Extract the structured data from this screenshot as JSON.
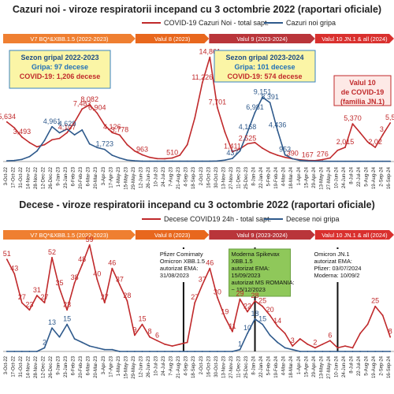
{
  "chart_data": [
    {
      "type": "line",
      "title": "Cazuri noi - viroze respiratorii incepand cu 3 octombrie 2022  (raportari oficiale)",
      "ylim": [
        0,
        16500
      ],
      "grid": false,
      "legend": "top-center",
      "x_ticks": [
        "3-Oct-22",
        "17-Oct-22",
        "31-Oct-22",
        "14-Nov-22",
        "28-Nov-22",
        "12-Dec-22",
        "26-Dec-22",
        "9-Jan-23",
        "23-Jan-23",
        "6-Feb-23",
        "20-Feb-23",
        "6-Mar-23",
        "20-Mar-23",
        "3-Apr-23",
        "17-Apr-23",
        "1-May-23",
        "15-May-23",
        "29-May-23",
        "12-Jun-23",
        "26-Jun-23",
        "10-Jul-23",
        "24-Jul-23",
        "7-Aug-23",
        "21-Aug-23",
        "4-Sep-23",
        "18-Sep-23",
        "2-Oct-23",
        "16-Oct-23",
        "30-Oct-23",
        "13-Nov-23",
        "27-Nov-23",
        "11-Dec-23",
        "25-Dec-23",
        "8-Jan-24",
        "22-Jan-24",
        "5-Feb-24",
        "19-Feb-24",
        "4-Mar-24",
        "18-Mar-24",
        "1-Apr-24",
        "15-Apr-24",
        "29-Apr-24",
        "13-May-24",
        "27-May-24",
        "10-Jun-24",
        "24-Jun-24",
        "8-Jul-24",
        "22-Jul-24",
        "5-Aug-24",
        "19-Aug-24",
        "2-Sep-24",
        "16-Sep-24"
      ],
      "periods": [
        {
          "label": "V7 BQ*&XBB.1.5 (2022-2023)",
          "from": 0,
          "to": 17.6,
          "color": "#ef7f31"
        },
        {
          "label": "Valul 8 (2023)",
          "from": 17.6,
          "to": 27.4,
          "color": "#e8671d"
        },
        {
          "label": "Valul 9 (2023-2024)",
          "from": 27.4,
          "to": 41.5,
          "color": "#b9353a"
        },
        {
          "label": "Valul 10 JN.1 & all (2024)",
          "from": 41.5,
          "to": 52,
          "color": "#d9302e"
        }
      ],
      "series": [
        {
          "name": "COVID-19 Cazuri Noi - total sapt.",
          "color": "#c0292b",
          "x": [
            0,
            1,
            2,
            3,
            4,
            5,
            6,
            7,
            8,
            9,
            10,
            11,
            12,
            13,
            14,
            15,
            16,
            17,
            18,
            19,
            20,
            21,
            22,
            23,
            24,
            25,
            26,
            27,
            28,
            29,
            30,
            31,
            32,
            33,
            34,
            35,
            36,
            37,
            38,
            39,
            40,
            41,
            42,
            43,
            44,
            45,
            46,
            47,
            48,
            49,
            50,
            51
          ],
          "values": [
            5634,
            4800,
            3493,
            2700,
            2100,
            2400,
            3100,
            3300,
            4107,
            5600,
            7483,
            8082,
            6904,
            5200,
            4126,
            3778,
            2400,
            1500,
            963,
            600,
            420,
            400,
            510,
            900,
            2400,
            6200,
            11226,
            14861,
            7701,
            4200,
            1411,
            1800,
            2525,
            2700,
            1900,
            1300,
            900,
            600,
            390,
            250,
            167,
            130,
            276,
            500,
            1600,
            2015,
            5370,
            4100,
            2800,
            2020,
            3800,
            5500
          ]
        },
        {
          "name": "Cazuri noi gripa",
          "color": "#2f5a8c",
          "x": [
            0,
            1,
            2,
            3,
            4,
            5,
            6,
            7,
            8,
            9,
            10,
            11,
            12,
            13,
            14,
            15,
            16,
            17,
            18,
            19,
            20,
            21,
            22,
            23,
            24,
            25,
            26,
            27,
            28,
            29,
            30,
            31,
            32,
            33,
            34,
            35,
            36,
            37,
            38,
            39,
            40,
            41,
            42,
            43,
            44,
            45,
            46,
            47,
            48,
            49,
            50,
            51
          ],
          "values": [
            100,
            150,
            300,
            700,
            1500,
            3000,
            4961,
            4100,
            4629,
            3800,
            4500,
            2500,
            2000,
            1723,
            900,
            500,
            200,
            100,
            50,
            40,
            40,
            40,
            40,
            40,
            40,
            40,
            40,
            50,
            80,
            200,
            437,
            1500,
            4168,
            6981,
            9151,
            8391,
            4436,
            953,
            400,
            150,
            80,
            60,
            40,
            30,
            30,
            30,
            30,
            30,
            30,
            30,
            30,
            30
          ]
        }
      ],
      "point_labels": [
        {
          "series": 0,
          "i": 0,
          "text": "5,634"
        },
        {
          "series": 0,
          "i": 2,
          "text": "3,493"
        },
        {
          "series": 0,
          "i": 8,
          "text": "4,107"
        },
        {
          "series": 0,
          "i": 10,
          "text": "7,483"
        },
        {
          "series": 0,
          "i": 11,
          "text": "8,082"
        },
        {
          "series": 0,
          "i": 12,
          "text": "6,904"
        },
        {
          "series": 0,
          "i": 14,
          "text": "4,126"
        },
        {
          "series": 0,
          "i": 15,
          "text": "3,778"
        },
        {
          "series": 0,
          "i": 18,
          "text": "963"
        },
        {
          "series": 0,
          "i": 22,
          "text": "510"
        },
        {
          "series": 0,
          "i": 26,
          "text": "11,226"
        },
        {
          "series": 0,
          "i": 27,
          "text": "14,861"
        },
        {
          "series": 0,
          "i": 28,
          "text": "7,701"
        },
        {
          "series": 0,
          "i": 30,
          "text": "1,411"
        },
        {
          "series": 0,
          "i": 32,
          "text": "2,525"
        },
        {
          "series": 0,
          "i": 38,
          "text": "390"
        },
        {
          "series": 0,
          "i": 40,
          "text": "167"
        },
        {
          "series": 0,
          "i": 42,
          "text": "276"
        },
        {
          "series": 0,
          "i": 45,
          "text": "2,015"
        },
        {
          "series": 0,
          "i": 46,
          "text": "5,370"
        },
        {
          "series": 0,
          "i": 49,
          "text": "2,02"
        },
        {
          "series": 0,
          "i": 50,
          "text": "3,"
        },
        {
          "series": 0,
          "i": 51,
          "text": "5,5"
        },
        {
          "series": 1,
          "i": 6,
          "text": "4,961"
        },
        {
          "series": 1,
          "i": 8,
          "text": "4,629"
        },
        {
          "series": 1,
          "i": 13,
          "text": "1,723"
        },
        {
          "series": 1,
          "i": 30,
          "text": "437"
        },
        {
          "series": 1,
          "i": 32,
          "text": "4,168"
        },
        {
          "series": 1,
          "i": 33,
          "text": "6,981"
        },
        {
          "series": 1,
          "i": 34,
          "text": "9,151"
        },
        {
          "series": 1,
          "i": 35,
          "text": "8,391"
        },
        {
          "series": 1,
          "i": 36,
          "text": "4,436"
        },
        {
          "series": 1,
          "i": 37,
          "text": "953"
        }
      ],
      "callouts": [
        {
          "lines": [
            "Sezon gripal 2022-2023",
            "Gripa: 97 decese",
            "COVID-19: 1,206 decese"
          ]
        },
        {
          "lines": [
            "Sezon gripal 2023-2024",
            "Gripa: 101 decese",
            "COVID-19: 574 decese"
          ]
        },
        {
          "lines": [
            "Valul 10",
            "de COVID-19",
            "(familia JN.1)"
          ]
        }
      ]
    },
    {
      "type": "line",
      "title": "Decese - viroze respiratorii incepand cu 3 octombrie 2022  (raportari oficiale)",
      "ylim": [
        0,
        62
      ],
      "grid": false,
      "legend": "top-center",
      "x_ticks": [
        "3-Oct-22",
        "17-Oct-22",
        "31-Oct-22",
        "14-Nov-22",
        "28-Nov-22",
        "12-Dec-22",
        "26-Dec-22",
        "9-Jan-23",
        "23-Jan-23",
        "6-Feb-23",
        "20-Feb-23",
        "6-Mar-23",
        "20-Mar-23",
        "3-Apr-23",
        "17-Apr-23",
        "1-May-23",
        "15-May-23",
        "29-May-23",
        "12-Jun-23",
        "26-Jun-23",
        "10-Jul-23",
        "24-Jul-23",
        "7-Aug-23",
        "21-Aug-23",
        "4-Sep-23",
        "18-Sep-23",
        "2-Oct-23",
        "16-Oct-23",
        "30-Oct-23",
        "13-Nov-23",
        "27-Nov-23",
        "11-Dec-23",
        "25-Dec-23",
        "8-Jan-24",
        "22-Jan-24",
        "5-Feb-24",
        "19-Feb-24",
        "4-Mar-24",
        "18-Mar-24",
        "1-Apr-24",
        "15-Apr-24",
        "29-Apr-24",
        "13-May-24",
        "27-May-24",
        "10-Jun-24",
        "24-Jun-24",
        "8-Jul-24",
        "22-Jul-24",
        "5-Aug-24",
        "19-Aug-24",
        "2-Sep-24",
        "16-Sep-24"
      ],
      "periods": [
        {
          "label": "V7 BQ*&XBB.1.5 (2022-2023)",
          "from": 0,
          "to": 17.6,
          "color": "#ef7f31"
        },
        {
          "label": "Valul 8 (2023)",
          "from": 17.6,
          "to": 27.4,
          "color": "#e8671d"
        },
        {
          "label": "Valul 9 (2023-2024)",
          "from": 27.4,
          "to": 41.5,
          "color": "#b9353a"
        },
        {
          "label": "Valul 10 JN.1 & all (2024)",
          "from": 41.5,
          "to": 52,
          "color": "#d9302e"
        }
      ],
      "series": [
        {
          "name": "Decese COVID19 24h - total sapt.",
          "color": "#c0292b",
          "x": [
            0,
            1,
            2,
            3,
            4,
            5,
            6,
            7,
            8,
            9,
            10,
            11,
            12,
            13,
            14,
            15,
            16,
            17,
            18,
            19,
            20,
            21,
            22,
            23,
            24,
            25,
            26,
            27,
            28,
            29,
            30,
            31,
            32,
            33,
            34,
            35,
            36,
            37,
            38,
            39,
            40,
            41,
            42,
            43,
            44,
            45,
            46,
            47,
            48,
            49,
            50,
            51
          ],
          "values": [
            51,
            43,
            27,
            23,
            31,
            27,
            52,
            35,
            23,
            38,
            48,
            59,
            40,
            27,
            46,
            37,
            28,
            9,
            15,
            8,
            6,
            4,
            3,
            4,
            5,
            27,
            37,
            46,
            30,
            19,
            11,
            29,
            22,
            28,
            25,
            20,
            14,
            10,
            3,
            7,
            4,
            2,
            4,
            6,
            2,
            3,
            2,
            10,
            15,
            25,
            20,
            8
          ]
        },
        {
          "name": "Decese noi gripa",
          "color": "#2f5a8c",
          "x": [
            0,
            1,
            2,
            3,
            4,
            5,
            6,
            7,
            8,
            9,
            10,
            11,
            12,
            13,
            14,
            15,
            16,
            17,
            18,
            19,
            20,
            21,
            22,
            23,
            24,
            25,
            26,
            27,
            28,
            29,
            30,
            31,
            32,
            33,
            34,
            35,
            36,
            37,
            38,
            39,
            40,
            41,
            42,
            43,
            44,
            45,
            46,
            47,
            48,
            49,
            50,
            51
          ],
          "values": [
            0,
            0,
            0,
            0,
            0,
            2,
            13,
            8,
            15,
            7,
            5,
            3,
            2,
            1,
            1,
            0,
            0,
            0,
            0,
            0,
            0,
            0,
            0,
            0,
            0,
            0,
            0,
            0,
            0,
            0,
            0,
            1,
            10,
            18,
            15,
            9,
            5,
            2,
            1,
            0,
            0,
            0,
            0,
            0,
            0,
            0,
            0,
            0,
            0,
            0,
            0,
            0
          ]
        }
      ],
      "point_labels": [
        {
          "series": 0,
          "i": 0,
          "text": "51"
        },
        {
          "series": 0,
          "i": 1,
          "text": "43"
        },
        {
          "series": 0,
          "i": 2,
          "text": "27"
        },
        {
          "series": 0,
          "i": 3,
          "text": "23"
        },
        {
          "series": 0,
          "i": 4,
          "text": "31"
        },
        {
          "series": 0,
          "i": 5,
          "text": "27"
        },
        {
          "series": 0,
          "i": 6,
          "text": "52"
        },
        {
          "series": 0,
          "i": 7,
          "text": "35"
        },
        {
          "series": 0,
          "i": 8,
          "text": "23"
        },
        {
          "series": 0,
          "i": 9,
          "text": "38"
        },
        {
          "series": 0,
          "i": 10,
          "text": "48"
        },
        {
          "series": 0,
          "i": 11,
          "text": "59"
        },
        {
          "series": 0,
          "i": 12,
          "text": "40"
        },
        {
          "series": 0,
          "i": 13,
          "text": "27"
        },
        {
          "series": 0,
          "i": 14,
          "text": "46"
        },
        {
          "series": 0,
          "i": 15,
          "text": "37"
        },
        {
          "series": 0,
          "i": 16,
          "text": "28"
        },
        {
          "series": 0,
          "i": 17,
          "text": "9"
        },
        {
          "series": 0,
          "i": 18,
          "text": "15"
        },
        {
          "series": 0,
          "i": 19,
          "text": "8"
        },
        {
          "series": 0,
          "i": 20,
          "text": "6"
        },
        {
          "series": 0,
          "i": 25,
          "text": "27"
        },
        {
          "series": 0,
          "i": 26,
          "text": "37"
        },
        {
          "series": 0,
          "i": 27,
          "text": "46"
        },
        {
          "series": 0,
          "i": 28,
          "text": "30"
        },
        {
          "series": 0,
          "i": 29,
          "text": "19"
        },
        {
          "series": 0,
          "i": 30,
          "text": "11"
        },
        {
          "series": 0,
          "i": 31,
          "text": "29"
        },
        {
          "series": 0,
          "i": 32,
          "text": "22"
        },
        {
          "series": 0,
          "i": 33,
          "text": "28"
        },
        {
          "series": 0,
          "i": 34,
          "text": "25"
        },
        {
          "series": 0,
          "i": 35,
          "text": "20"
        },
        {
          "series": 0,
          "i": 36,
          "text": "14"
        },
        {
          "series": 0,
          "i": 38,
          "text": "3"
        },
        {
          "series": 0,
          "i": 41,
          "text": "2"
        },
        {
          "series": 0,
          "i": 43,
          "text": "6"
        },
        {
          "series": 0,
          "i": 49,
          "text": "25"
        },
        {
          "series": 0,
          "i": 51,
          "text": "8"
        },
        {
          "series": 1,
          "i": 5,
          "text": "2"
        },
        {
          "series": 1,
          "i": 6,
          "text": "13"
        },
        {
          "series": 1,
          "i": 8,
          "text": "15"
        },
        {
          "series": 1,
          "i": 31,
          "text": "1"
        },
        {
          "series": 1,
          "i": 32,
          "text": "10"
        },
        {
          "series": 1,
          "i": 33,
          "text": "18"
        },
        {
          "series": 1,
          "i": 34,
          "text": "15"
        }
      ],
      "events": [
        {
          "x": 24.0,
          "lines": [
            "Pfizer Comirnaty",
            "Omicron XBB.1.5",
            "autorizat EMA:",
            "31/08/2023"
          ],
          "box": "#ffffff"
        },
        {
          "x": 33.5,
          "lines": [
            "Moderna Spikevax",
            "XBB.1.5",
            "autorizat EMA:",
            "15/09/2023",
            "autorizat MS ROMANIA:",
            "~ 15/12/2023"
          ],
          "box": "#8fc85a"
        },
        {
          "x": 44.5,
          "lines": [
            "Omicron JN.1",
            "autorizat EMA:",
            "Pfizer: 03/07/2024",
            "Moderna: 10/09/2"
          ],
          "box": "#ffffff"
        }
      ]
    }
  ]
}
